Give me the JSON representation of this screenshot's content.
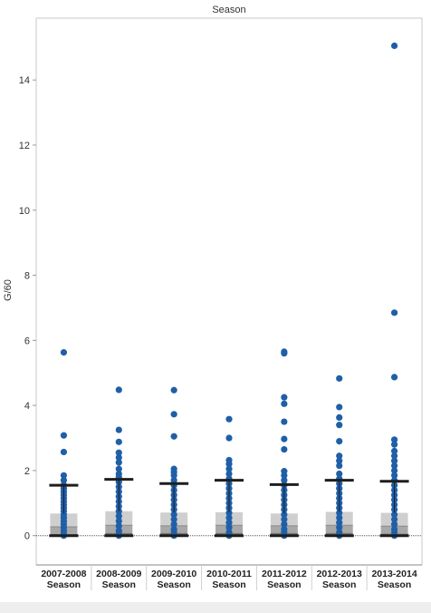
{
  "chart_data": {
    "type": "scatter",
    "title": "Season",
    "xlabel": "",
    "ylabel": "G/60",
    "ylim": [
      -0.9,
      15.9
    ],
    "yticks": [
      0,
      2,
      4,
      6,
      8,
      10,
      12,
      14
    ],
    "grid": false,
    "legend": "none",
    "colors": {
      "point": "#1f5fa8",
      "whisker": "#1e1e1e",
      "box_outer": "#cfcfcf",
      "box_mid": "#a8a8a8",
      "box_inner": "#707070",
      "baseline": "#555555",
      "frame": "#c8c8c8"
    },
    "categories": [
      {
        "label_line1": "2007-2008",
        "label_line2": "Season",
        "points": [
          5.63,
          3.08,
          2.57,
          1.85,
          1.7,
          1.55,
          1.45,
          1.35,
          1.25,
          1.15,
          1.05,
          0.95,
          0.85,
          0.75,
          0.65,
          0.55,
          0.45,
          0.35,
          0.25,
          0.15,
          0.05,
          0.0
        ],
        "box": {
          "q1": 0.02,
          "median": 0.27,
          "q3": 0.68,
          "upper_whisker": 1.55,
          "lower_whisker": 0.0
        }
      },
      {
        "label_line1": "2008-2009",
        "label_line2": "Season",
        "points": [
          4.48,
          3.25,
          2.88,
          2.55,
          2.4,
          2.25,
          2.05,
          1.9,
          1.8,
          1.65,
          1.5,
          1.35,
          1.2,
          1.05,
          0.9,
          0.75,
          0.6,
          0.45,
          0.3,
          0.15,
          0.05,
          0.0
        ],
        "box": {
          "q1": 0.05,
          "median": 0.32,
          "q3": 0.75,
          "upper_whisker": 1.73,
          "lower_whisker": 0.0
        }
      },
      {
        "label_line1": "2009-2010",
        "label_line2": "Season",
        "points": [
          4.47,
          3.73,
          3.05,
          2.05,
          1.95,
          1.85,
          1.7,
          1.55,
          1.4,
          1.25,
          1.1,
          0.95,
          0.8,
          0.65,
          0.5,
          0.35,
          0.2,
          0.1,
          0.0
        ],
        "box": {
          "q1": 0.05,
          "median": 0.3,
          "q3": 0.71,
          "upper_whisker": 1.6,
          "lower_whisker": 0.0
        }
      },
      {
        "label_line1": "2010-2011",
        "label_line2": "Season",
        "points": [
          3.58,
          3.0,
          2.32,
          2.2,
          2.05,
          1.9,
          1.75,
          1.6,
          1.45,
          1.3,
          1.15,
          1.0,
          0.85,
          0.7,
          0.55,
          0.4,
          0.25,
          0.1,
          0.0
        ],
        "box": {
          "q1": 0.05,
          "median": 0.32,
          "q3": 0.72,
          "upper_whisker": 1.7,
          "lower_whisker": 0.0
        }
      },
      {
        "label_line1": "2011-2012",
        "label_line2": "Season",
        "points": [
          5.65,
          5.6,
          4.25,
          4.05,
          3.5,
          2.97,
          2.65,
          1.98,
          1.85,
          1.7,
          1.55,
          1.4,
          1.25,
          1.1,
          0.95,
          0.8,
          0.65,
          0.5,
          0.35,
          0.2,
          0.1,
          0.0
        ],
        "box": {
          "q1": 0.05,
          "median": 0.3,
          "q3": 0.68,
          "upper_whisker": 1.57,
          "lower_whisker": 0.0
        }
      },
      {
        "label_line1": "2012-2013",
        "label_line2": "Season",
        "points": [
          4.83,
          3.95,
          3.63,
          3.4,
          2.9,
          2.45,
          2.3,
          2.15,
          1.9,
          1.75,
          1.6,
          1.45,
          1.3,
          1.15,
          1.0,
          0.85,
          0.7,
          0.55,
          0.4,
          0.25,
          0.1,
          0.0
        ],
        "box": {
          "q1": 0.05,
          "median": 0.32,
          "q3": 0.73,
          "upper_whisker": 1.7,
          "lower_whisker": 0.0
        }
      },
      {
        "label_line1": "2013-2014",
        "label_line2": "Season",
        "points": [
          15.05,
          6.85,
          4.87,
          2.95,
          2.8,
          2.6,
          2.45,
          2.3,
          2.15,
          2.0,
          1.85,
          1.7,
          1.55,
          1.4,
          1.25,
          1.1,
          0.95,
          0.8,
          0.65,
          0.5,
          0.35,
          0.2,
          0.1,
          0.0
        ],
        "box": {
          "q1": 0.03,
          "median": 0.29,
          "q3": 0.7,
          "upper_whisker": 1.67,
          "lower_whisker": 0.0
        }
      }
    ]
  }
}
